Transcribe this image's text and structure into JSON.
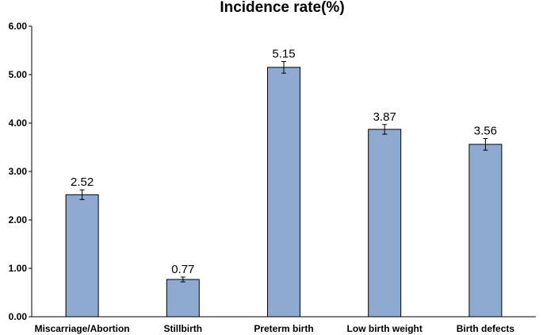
{
  "chart_data": {
    "type": "bar",
    "title": "Incidence rate(%)",
    "xlabel": "",
    "ylabel": "",
    "categories": [
      "Miscarriage/Abortion",
      "Stillbirth",
      "Preterm birth",
      "Low birth weight",
      "Birth defects"
    ],
    "values": [
      2.52,
      0.77,
      5.15,
      3.87,
      3.56
    ],
    "data_labels": [
      "2.52",
      "0.77",
      "5.15",
      "3.87",
      "3.56"
    ],
    "error": [
      0.1,
      0.05,
      0.12,
      0.1,
      0.12
    ],
    "ylim": [
      0,
      6
    ],
    "yticks": [
      0,
      1,
      2,
      3,
      4,
      5,
      6
    ],
    "ytick_labels": [
      "0.00",
      "1.00",
      "2.00",
      "3.00",
      "4.00",
      "5.00",
      "6.00"
    ],
    "grid": false,
    "legend": "none",
    "bar_color": "#8eaad0"
  }
}
